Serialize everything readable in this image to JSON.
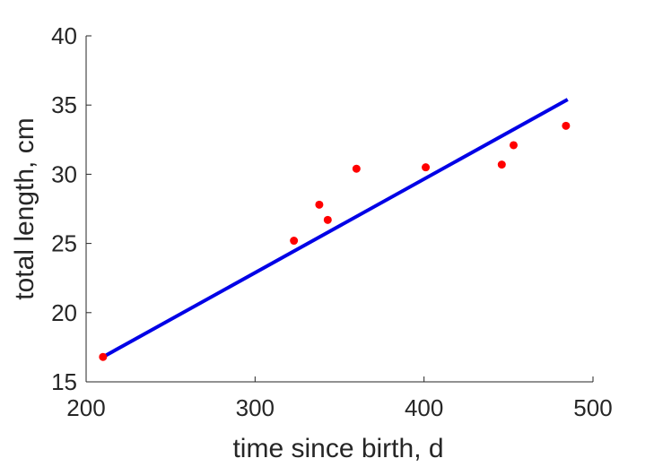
{
  "chart_data": {
    "type": "scatter",
    "xlabel": "time since birth, d",
    "ylabel": "total length, cm",
    "xlim": [
      200,
      500
    ],
    "ylim": [
      15,
      40
    ],
    "xticks": [
      200,
      300,
      400,
      500
    ],
    "yticks": [
      15,
      20,
      25,
      30,
      35,
      40
    ],
    "grid": false,
    "box": false,
    "series": [
      {
        "kind": "scatter",
        "color": "#ff0000",
        "points": [
          {
            "x": 210,
            "y": 16.8
          },
          {
            "x": 323,
            "y": 25.2
          },
          {
            "x": 338,
            "y": 27.8
          },
          {
            "x": 343,
            "y": 26.7
          },
          {
            "x": 360,
            "y": 30.4
          },
          {
            "x": 401,
            "y": 30.5
          },
          {
            "x": 446,
            "y": 30.7
          },
          {
            "x": 453,
            "y": 32.1
          },
          {
            "x": 484,
            "y": 33.5
          }
        ]
      },
      {
        "kind": "line",
        "color": "#0000e6",
        "points": [
          {
            "x": 210,
            "y": 16.8
          },
          {
            "x": 485,
            "y": 35.4
          }
        ]
      }
    ]
  }
}
